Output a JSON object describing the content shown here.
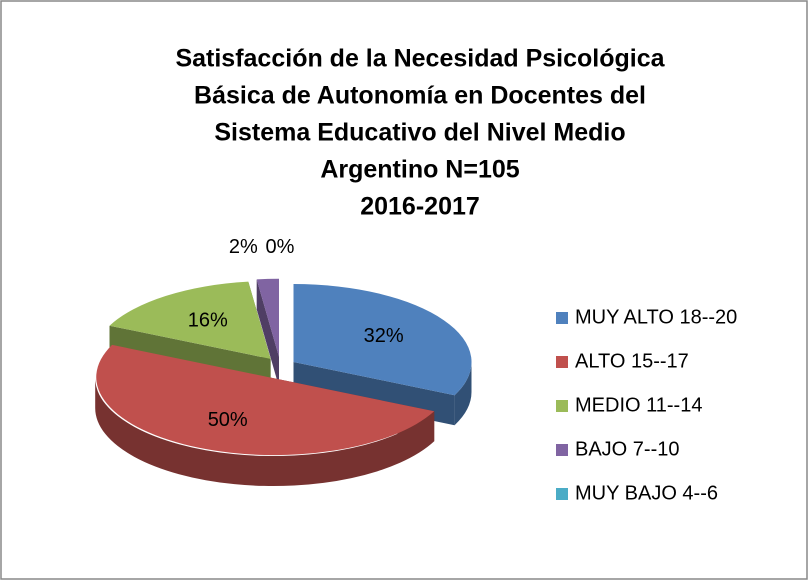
{
  "chart_data": {
    "type": "pie",
    "title": [
      "Satisfacción de la Necesidad Psicológica",
      "Básica de Autonomía en Docentes del",
      "Sistema Educativo del Nivel Medio",
      "Argentino N=105",
      "2016-2017"
    ],
    "categories": [
      "MUY ALTO 18--20",
      "ALTO 15--17",
      "MEDIO 11--14",
      "BAJO 7--10",
      "MUY BAJO 4--6"
    ],
    "values": [
      32,
      50,
      16,
      2,
      0
    ],
    "value_labels": [
      "32%",
      "50%",
      "16%",
      "2%",
      "0%"
    ],
    "colors": [
      "#4f81bd",
      "#c0504d",
      "#9bbb59",
      "#8064a2",
      "#4bacc6"
    ],
    "legend": "right"
  }
}
